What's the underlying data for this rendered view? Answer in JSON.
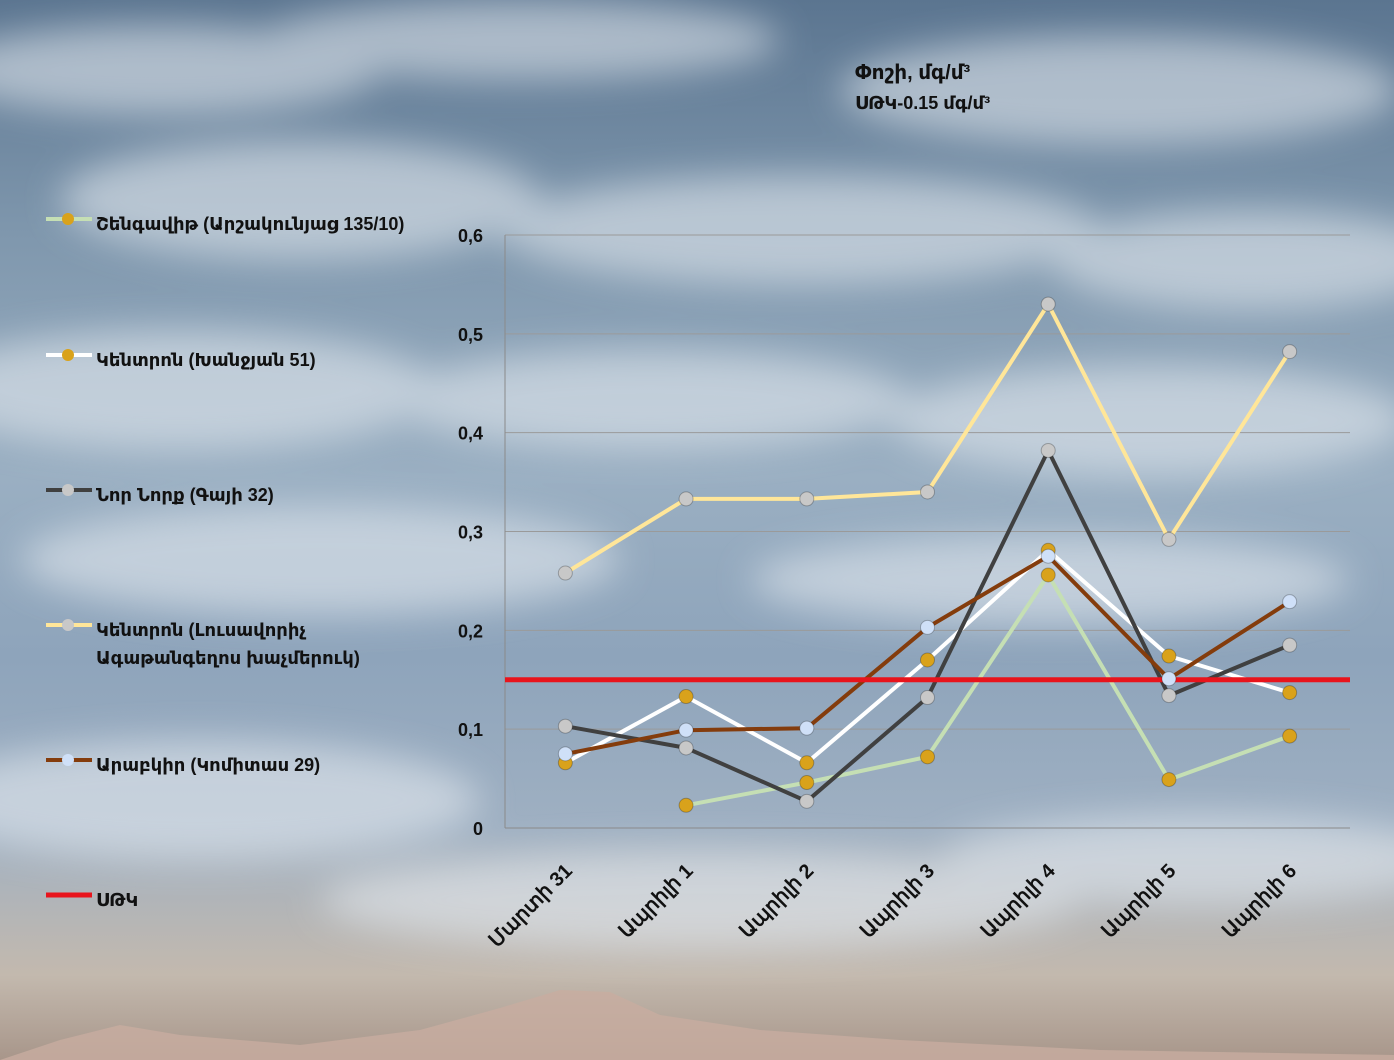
{
  "chart_data": {
    "type": "line",
    "title": "Փոշի, մգ/մ³",
    "subtitle": "ՍԹԿ-0.15 մգ/մ³",
    "categories": [
      "Մարտի 31",
      "Ապրիլի 1",
      "Ապրիլի 2",
      "Ապրիլի 3",
      "Ապրիլի 4",
      "Ապրիլի 5",
      "Ապրիլի 6"
    ],
    "ylim": [
      0,
      0.6
    ],
    "yticks": [
      "0",
      "0,1",
      "0,2",
      "0,3",
      "0,4",
      "0,5",
      "0,6"
    ],
    "grid": true,
    "legend_position": "left",
    "threshold": {
      "name": "ՍԹԿ",
      "value": 0.15,
      "color": "#e8141c"
    },
    "series": [
      {
        "name": "Շենգավիթ (Արշակունյաց 135/10)",
        "line_color": "#c5dfb4",
        "marker_color": "#d9a21b",
        "values": [
          null,
          0.023,
          0.046,
          0.072,
          0.256,
          0.049,
          0.093
        ]
      },
      {
        "name": "Կենտրոն (Խանջյան 51)",
        "line_color": "#ffffff",
        "marker_color": "#d9a21b",
        "values": [
          0.066,
          0.133,
          0.066,
          0.17,
          0.281,
          0.174,
          0.137
        ]
      },
      {
        "name": "Նոր Նորք (Գայի 32)",
        "line_color": "#404040",
        "marker_color": "#c8c8c8",
        "values": [
          0.103,
          0.081,
          0.027,
          0.132,
          0.382,
          0.134,
          0.185
        ]
      },
      {
        "name": "Կենտրոն (Լուսավորիչ Ագաթանգեղոս խաչմերուկ)",
        "line_color": "#ffe699",
        "marker_color": "#c8c8c8",
        "values": [
          0.258,
          0.333,
          0.333,
          0.34,
          0.53,
          0.292,
          0.482
        ]
      },
      {
        "name": "Արաբկիր (Կոմիտաս 29)",
        "line_color": "#843c0c",
        "marker_color": "#cfe0f8",
        "values": [
          0.075,
          0.099,
          0.101,
          0.203,
          0.275,
          0.151,
          0.229
        ]
      }
    ]
  }
}
